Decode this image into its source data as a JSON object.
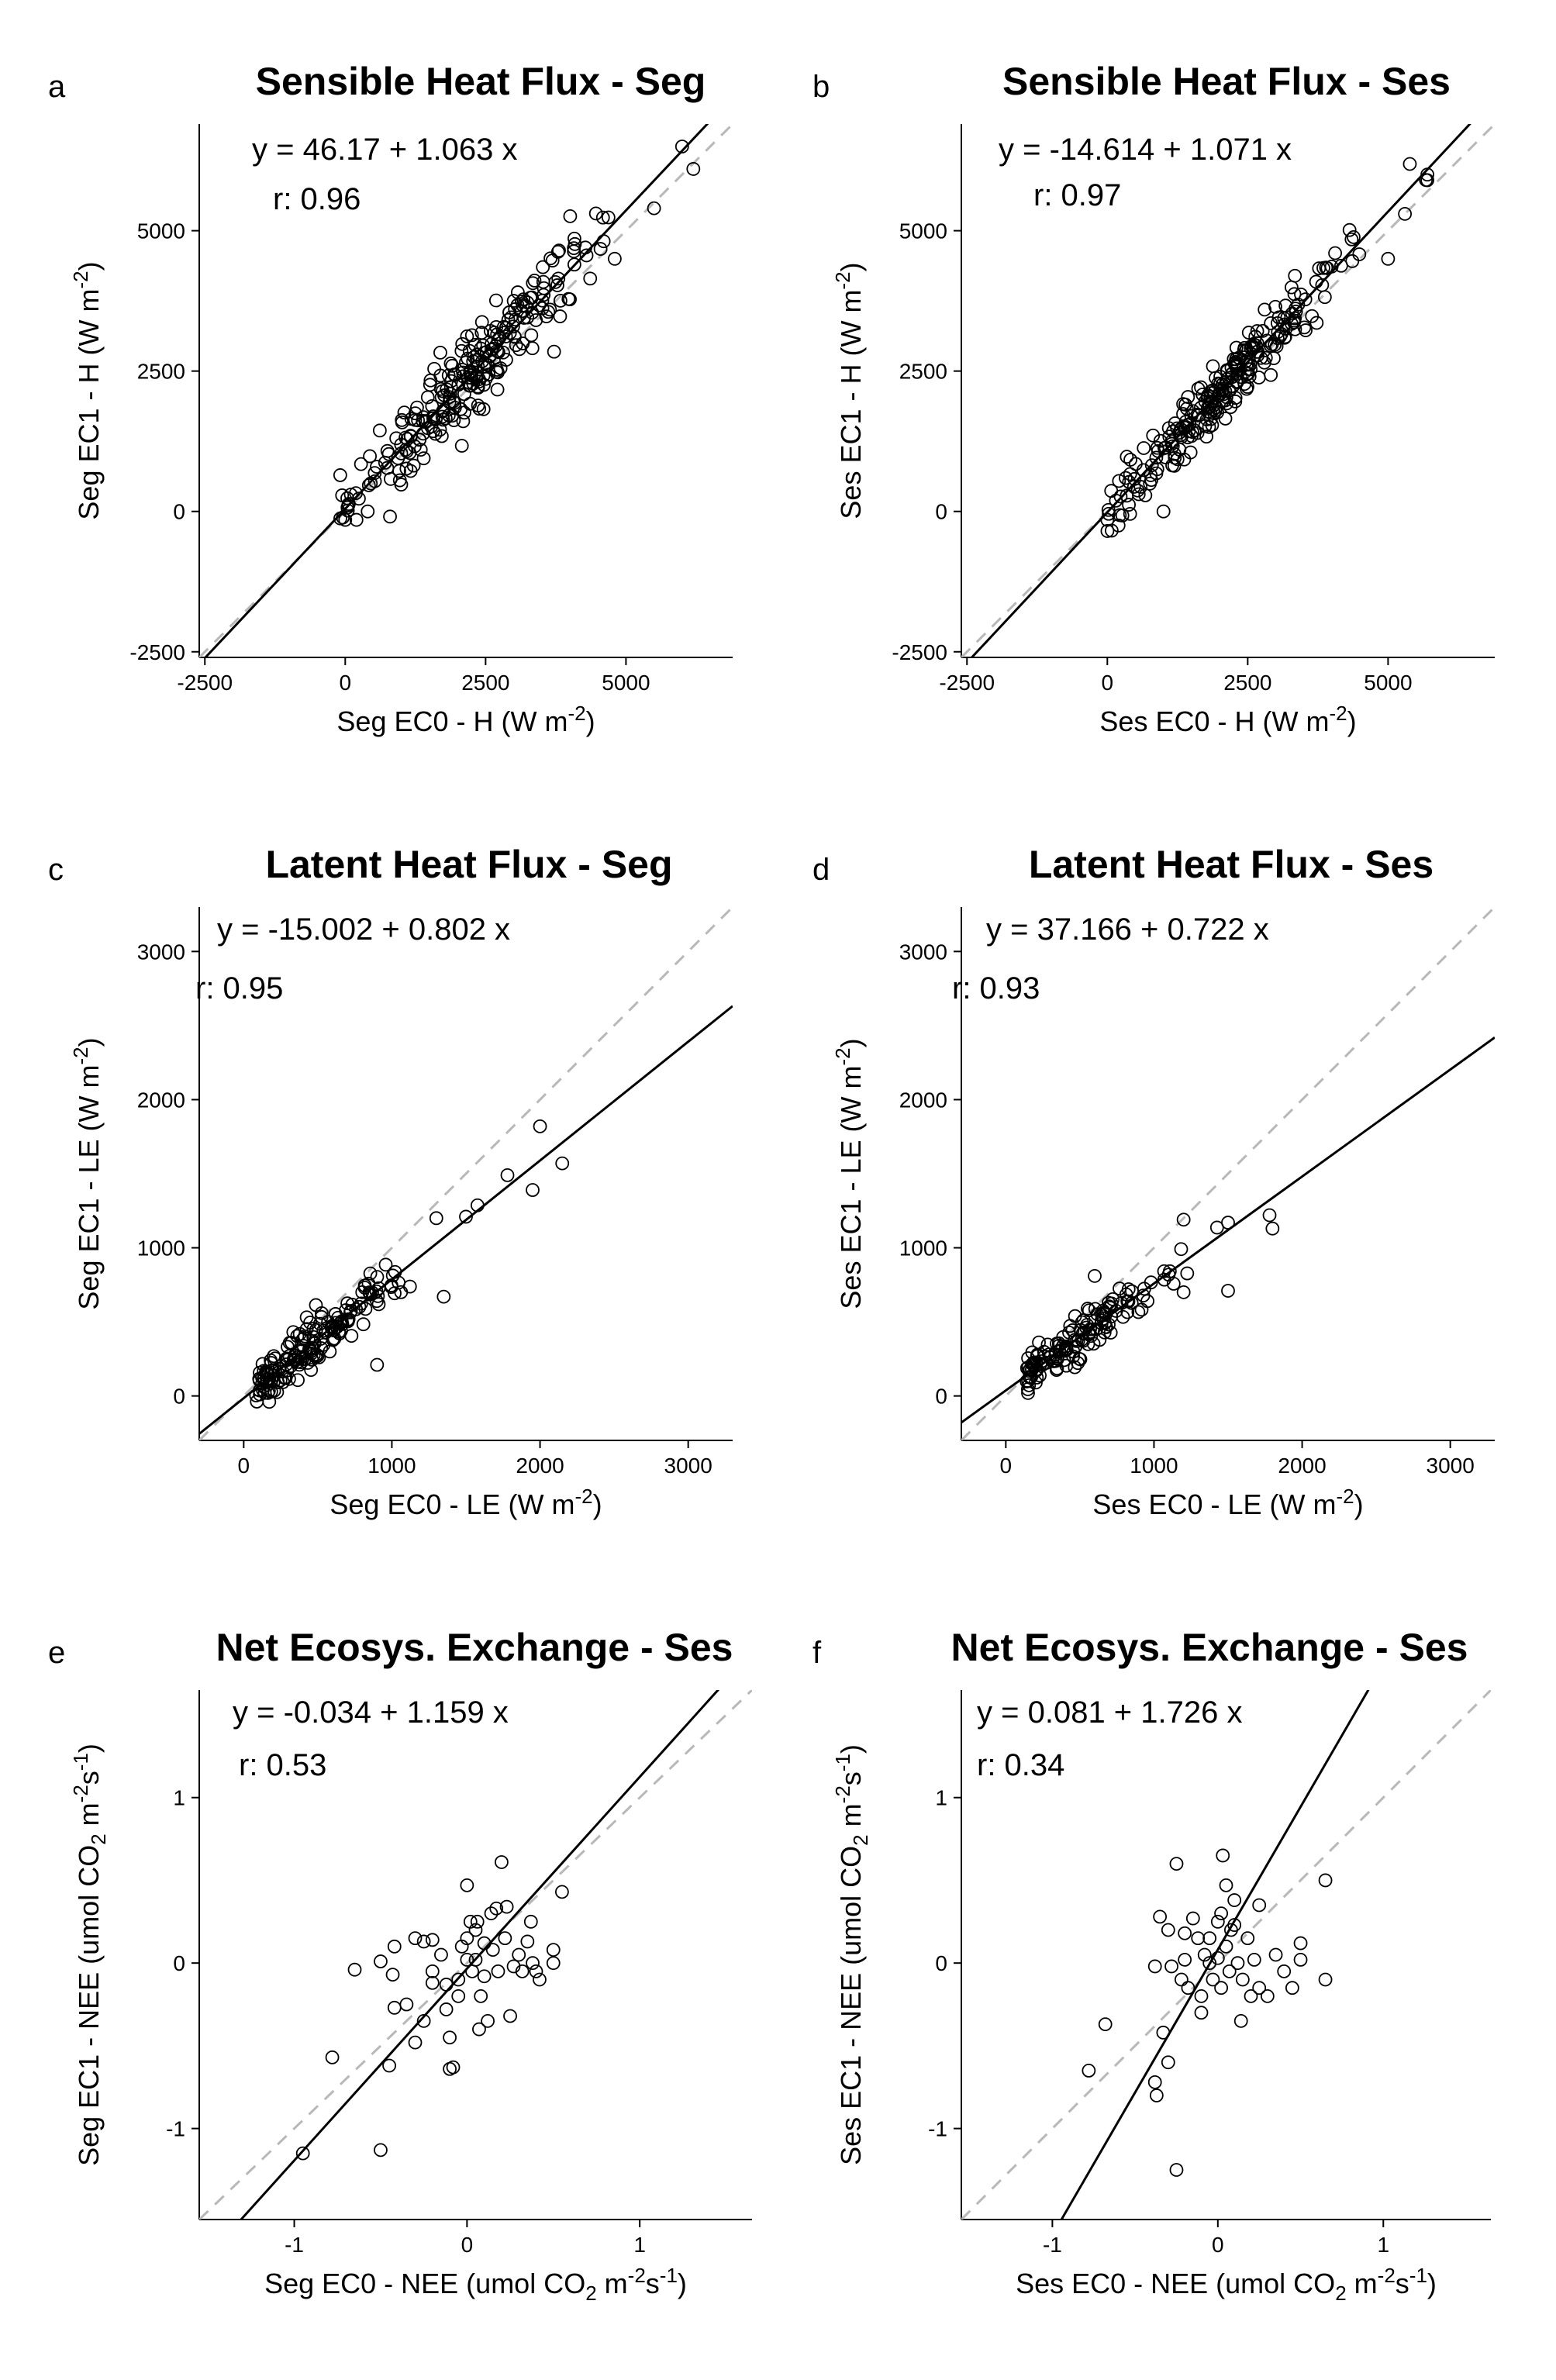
{
  "chart_data": [
    {
      "panel": "a",
      "type": "scatter",
      "title": "Sensible Heat Flux - Seg",
      "xlabel": "Seg EC0 - H (W m",
      "xlabel_sup": "-2",
      "xlabel_end": ")",
      "ylabel": "Seg EC1 - H (W m",
      "ylabel_sup": "-2",
      "ylabel_end": ")",
      "xlim": [
        -2600,
        6900
      ],
      "ylim": [
        -2600,
        6900
      ],
      "xticks": [
        -2500,
        0,
        2500,
        5000
      ],
      "yticks": [
        -2500,
        0,
        2500,
        5000
      ],
      "equation": "y =  46.17 + 1.063 x",
      "r_text": "r:  0.96",
      "fit": {
        "intercept": 46.17,
        "slope": 1.063
      },
      "identity_line": true,
      "n_points": 260,
      "point_summary": {
        "x_mean": 2300,
        "x_sd": 1100,
        "x_min": -100,
        "x_max": 6400,
        "y_resid_sd": 330
      },
      "notable_points": [
        [
          6000,
          6500
        ],
        [
          6200,
          6100
        ],
        [
          5500,
          5400
        ],
        [
          4800,
          4500
        ],
        [
          100,
          300
        ],
        [
          0,
          -150
        ],
        [
          200,
          -150
        ],
        [
          400,
          0
        ]
      ]
    },
    {
      "panel": "b",
      "type": "scatter",
      "title": "Sensible Heat Flux - Ses",
      "xlabel": "Ses EC0 - H (W m",
      "xlabel_sup": "-2",
      "xlabel_end": ")",
      "ylabel": "Ses EC1 - H (W m",
      "ylabel_sup": "-2",
      "ylabel_end": ")",
      "xlim": [
        -2600,
        6900
      ],
      "ylim": [
        -2600,
        6900
      ],
      "xticks": [
        -2500,
        0,
        2500,
        5000
      ],
      "yticks": [
        -2500,
        0,
        2500,
        5000
      ],
      "equation": "y =  -14.614 + 1.071 x",
      "r_text": "r:  0.97",
      "fit": {
        "intercept": -14.614,
        "slope": 1.071
      },
      "identity_line": true,
      "n_points": 260,
      "point_summary": {
        "x_mean": 2200,
        "x_sd": 1050,
        "x_min": 0,
        "x_max": 5800,
        "y_resid_sd": 260
      },
      "notable_points": [
        [
          5700,
          5900
        ],
        [
          5700,
          6000
        ],
        [
          5300,
          5300
        ],
        [
          5000,
          4500
        ],
        [
          200,
          -250
        ],
        [
          1000,
          0
        ],
        [
          0,
          -150
        ]
      ]
    },
    {
      "panel": "c",
      "type": "scatter",
      "title": "Latent Heat Flux - Seg",
      "xlabel": "Seg EC0 - LE (W m",
      "xlabel_sup": "-2",
      "xlabel_end": ")",
      "ylabel": "Seg EC1 - LE (W m",
      "ylabel_sup": "-2",
      "ylabel_end": ")",
      "xlim": [
        -300,
        3300
      ],
      "ylim": [
        -300,
        3300
      ],
      "xticks": [
        0,
        1000,
        2000,
        3000
      ],
      "yticks": [
        0,
        1000,
        2000,
        3000
      ],
      "equation": "y =  -15.002 + 0.802 x",
      "r_text": "r:  0.95",
      "fit": {
        "intercept": -15.002,
        "slope": 0.802
      },
      "identity_line": true,
      "n_points": 180,
      "point_summary": {
        "x_mean": 450,
        "x_sd": 320,
        "x_min": 80,
        "x_max": 2150,
        "y_resid_sd": 80
      },
      "notable_points": [
        [
          2000,
          1820
        ],
        [
          2150,
          1570
        ],
        [
          1950,
          1390
        ],
        [
          1780,
          1490
        ],
        [
          1300,
          1200
        ],
        [
          900,
          210
        ],
        [
          1350,
          670
        ],
        [
          1500,
          1210
        ]
      ]
    },
    {
      "panel": "d",
      "type": "scatter",
      "title": "Latent Heat Flux - Ses",
      "xlabel": "Ses EC0 - LE (W m",
      "xlabel_sup": "-2",
      "xlabel_end": ")",
      "ylabel": "Ses EC1 - LE (W m",
      "ylabel_sup": "-2",
      "ylabel_end": ")",
      "xlim": [
        -300,
        3300
      ],
      "ylim": [
        -300,
        3300
      ],
      "xticks": [
        0,
        1000,
        2000,
        3000
      ],
      "yticks": [
        0,
        1000,
        2000,
        3000
      ],
      "equation": "y =  37.166 + 0.722 x",
      "r_text": "r:  0.93",
      "fit": {
        "intercept": 37.166,
        "slope": 0.722
      },
      "identity_line": true,
      "n_points": 150,
      "point_summary": {
        "x_mean": 500,
        "x_sd": 280,
        "x_min": 130,
        "x_max": 1800,
        "y_resid_sd": 70
      },
      "notable_points": [
        [
          1780,
          1220
        ],
        [
          1800,
          1130
        ],
        [
          1500,
          1170
        ],
        [
          1500,
          710
        ],
        [
          1200,
          1190
        ],
        [
          1200,
          700
        ],
        [
          600,
          810
        ],
        [
          150,
          20
        ]
      ]
    },
    {
      "panel": "e",
      "type": "scatter",
      "title": "Net Ecosys. Exchange - Ses",
      "xlabel": "Seg EC0 - NEE (umol CO",
      "xlabel_sub": "2",
      "xlabel_mid": " m",
      "xlabel_sup": "-2",
      "xlabel_mid2": "s",
      "xlabel_sup2": "-1",
      "xlabel_end": ")",
      "ylabel": "Seg EC1 - NEE (umol CO",
      "ylabel_sub": "2",
      "ylabel_mid": " m",
      "ylabel_sup": "-2",
      "ylabel_mid2": "s",
      "ylabel_sup2": "-1",
      "ylabel_end": ")",
      "xlim": [
        -1.55,
        1.65
      ],
      "ylim": [
        -1.55,
        1.65
      ],
      "xticks": [
        -1,
        0,
        1
      ],
      "yticks": [
        -1,
        0,
        1
      ],
      "equation": "y =  -0.034 + 1.159 x",
      "r_text": "r:  0.53",
      "fit": {
        "intercept": -0.034,
        "slope": 1.159
      },
      "identity_line": true,
      "points": [
        [
          -0.95,
          -1.15
        ],
        [
          -0.5,
          -1.13
        ],
        [
          -0.78,
          -0.57
        ],
        [
          -0.45,
          -0.62
        ],
        [
          -0.65,
          -0.04
        ],
        [
          -0.5,
          0.01
        ],
        [
          -0.43,
          -0.07
        ],
        [
          -0.42,
          0.1
        ],
        [
          -0.42,
          -0.27
        ],
        [
          -0.3,
          -0.48
        ],
        [
          -0.25,
          -0.35
        ],
        [
          -0.25,
          0.13
        ],
        [
          -0.2,
          0.14
        ],
        [
          -0.2,
          -0.12
        ],
        [
          -0.15,
          0.05
        ],
        [
          -0.12,
          -0.28
        ],
        [
          -0.1,
          -0.45
        ],
        [
          -0.1,
          -0.64
        ],
        [
          -0.08,
          -0.63
        ],
        [
          -0.05,
          -0.2
        ],
        [
          -0.05,
          -0.1
        ],
        [
          -0.03,
          0.1
        ],
        [
          0.0,
          0.02
        ],
        [
          0.0,
          0.15
        ],
        [
          0.02,
          0.25
        ],
        [
          0.03,
          -0.05
        ],
        [
          0.05,
          0.2
        ],
        [
          0.05,
          0.02
        ],
        [
          0.08,
          -0.2
        ],
        [
          0.1,
          0.12
        ],
        [
          0.1,
          -0.08
        ],
        [
          0.12,
          -0.35
        ],
        [
          0.15,
          0.08
        ],
        [
          0.17,
          0.33
        ],
        [
          0.18,
          -0.05
        ],
        [
          0.2,
          0.61
        ],
        [
          0.22,
          0.15
        ],
        [
          0.23,
          0.34
        ],
        [
          0.25,
          -0.32
        ],
        [
          0.27,
          -0.02
        ],
        [
          0.3,
          0.05
        ],
        [
          0.32,
          -0.05
        ],
        [
          0.35,
          0.13
        ],
        [
          0.37,
          0.25
        ],
        [
          0.38,
          0.0
        ],
        [
          0.4,
          -0.05
        ],
        [
          0.42,
          -0.1
        ],
        [
          0.5,
          0.08
        ],
        [
          0.5,
          0.0
        ],
        [
          0.55,
          0.43
        ],
        [
          -0.3,
          0.15
        ],
        [
          -0.35,
          -0.25
        ],
        [
          -0.2,
          -0.05
        ],
        [
          0.07,
          -0.4
        ],
        [
          0.14,
          0.3
        ],
        [
          0.0,
          0.47
        ],
        [
          -0.12,
          -0.13
        ],
        [
          0.06,
          0.25
        ]
      ]
    },
    {
      "panel": "f",
      "type": "scatter",
      "title": "Net Ecosys. Exchange - Ses",
      "xlabel": "Ses EC0 - NEE (umol CO",
      "xlabel_sub": "2",
      "xlabel_mid": " m",
      "xlabel_sup": "-2",
      "xlabel_mid2": "s",
      "xlabel_sup2": "-1",
      "xlabel_end": ")",
      "ylabel": "Ses EC1 - NEE (umol CO",
      "ylabel_sub": "2",
      "ylabel_mid": " m",
      "ylabel_sup": "-2",
      "ylabel_mid2": "s",
      "ylabel_sup2": "-1",
      "ylabel_end": ")",
      "xlim": [
        -1.55,
        1.65
      ],
      "ylim": [
        -1.55,
        1.65
      ],
      "xticks": [
        -1,
        0,
        1
      ],
      "yticks": [
        -1,
        0,
        1
      ],
      "equation": "y =  0.081 + 1.726 x",
      "r_text": "r:  0.34",
      "fit": {
        "intercept": 0.081,
        "slope": 1.726
      },
      "identity_line": true,
      "points": [
        [
          -0.25,
          -1.25
        ],
        [
          -0.78,
          -0.65
        ],
        [
          -0.68,
          -0.37
        ],
        [
          -0.38,
          -0.72
        ],
        [
          -0.37,
          -0.8
        ],
        [
          -0.3,
          -0.6
        ],
        [
          -0.33,
          -0.42
        ],
        [
          -0.38,
          -0.02
        ],
        [
          -0.35,
          0.28
        ],
        [
          -0.3,
          0.2
        ],
        [
          -0.28,
          -0.02
        ],
        [
          -0.25,
          0.6
        ],
        [
          -0.22,
          -0.1
        ],
        [
          -0.2,
          0.02
        ],
        [
          -0.18,
          -0.15
        ],
        [
          -0.15,
          0.27
        ],
        [
          -0.12,
          0.15
        ],
        [
          -0.1,
          -0.3
        ],
        [
          -0.05,
          0.0
        ],
        [
          -0.03,
          -0.1
        ],
        [
          0.0,
          0.03
        ],
        [
          0.02,
          0.3
        ],
        [
          0.03,
          0.65
        ],
        [
          0.05,
          0.1
        ],
        [
          0.05,
          0.47
        ],
        [
          0.07,
          -0.05
        ],
        [
          0.08,
          0.2
        ],
        [
          0.1,
          0.38
        ],
        [
          0.12,
          0.0
        ],
        [
          0.15,
          -0.1
        ],
        [
          0.18,
          0.15
        ],
        [
          0.2,
          -0.2
        ],
        [
          0.22,
          0.02
        ],
        [
          0.25,
          0.35
        ],
        [
          0.25,
          -0.15
        ],
        [
          0.3,
          -0.2
        ],
        [
          0.35,
          0.05
        ],
        [
          0.4,
          -0.05
        ],
        [
          0.45,
          -0.15
        ],
        [
          0.5,
          0.12
        ],
        [
          0.5,
          0.02
        ],
        [
          0.65,
          0.5
        ],
        [
          0.65,
          -0.1
        ],
        [
          -0.08,
          0.05
        ],
        [
          0.0,
          0.25
        ],
        [
          0.1,
          0.23
        ],
        [
          -0.2,
          0.18
        ],
        [
          0.14,
          -0.35
        ],
        [
          -0.1,
          -0.2
        ],
        [
          0.02,
          -0.15
        ],
        [
          -0.05,
          0.15
        ]
      ]
    }
  ],
  "panel_letters": [
    "a",
    "b",
    "c",
    "d",
    "e",
    "f"
  ]
}
